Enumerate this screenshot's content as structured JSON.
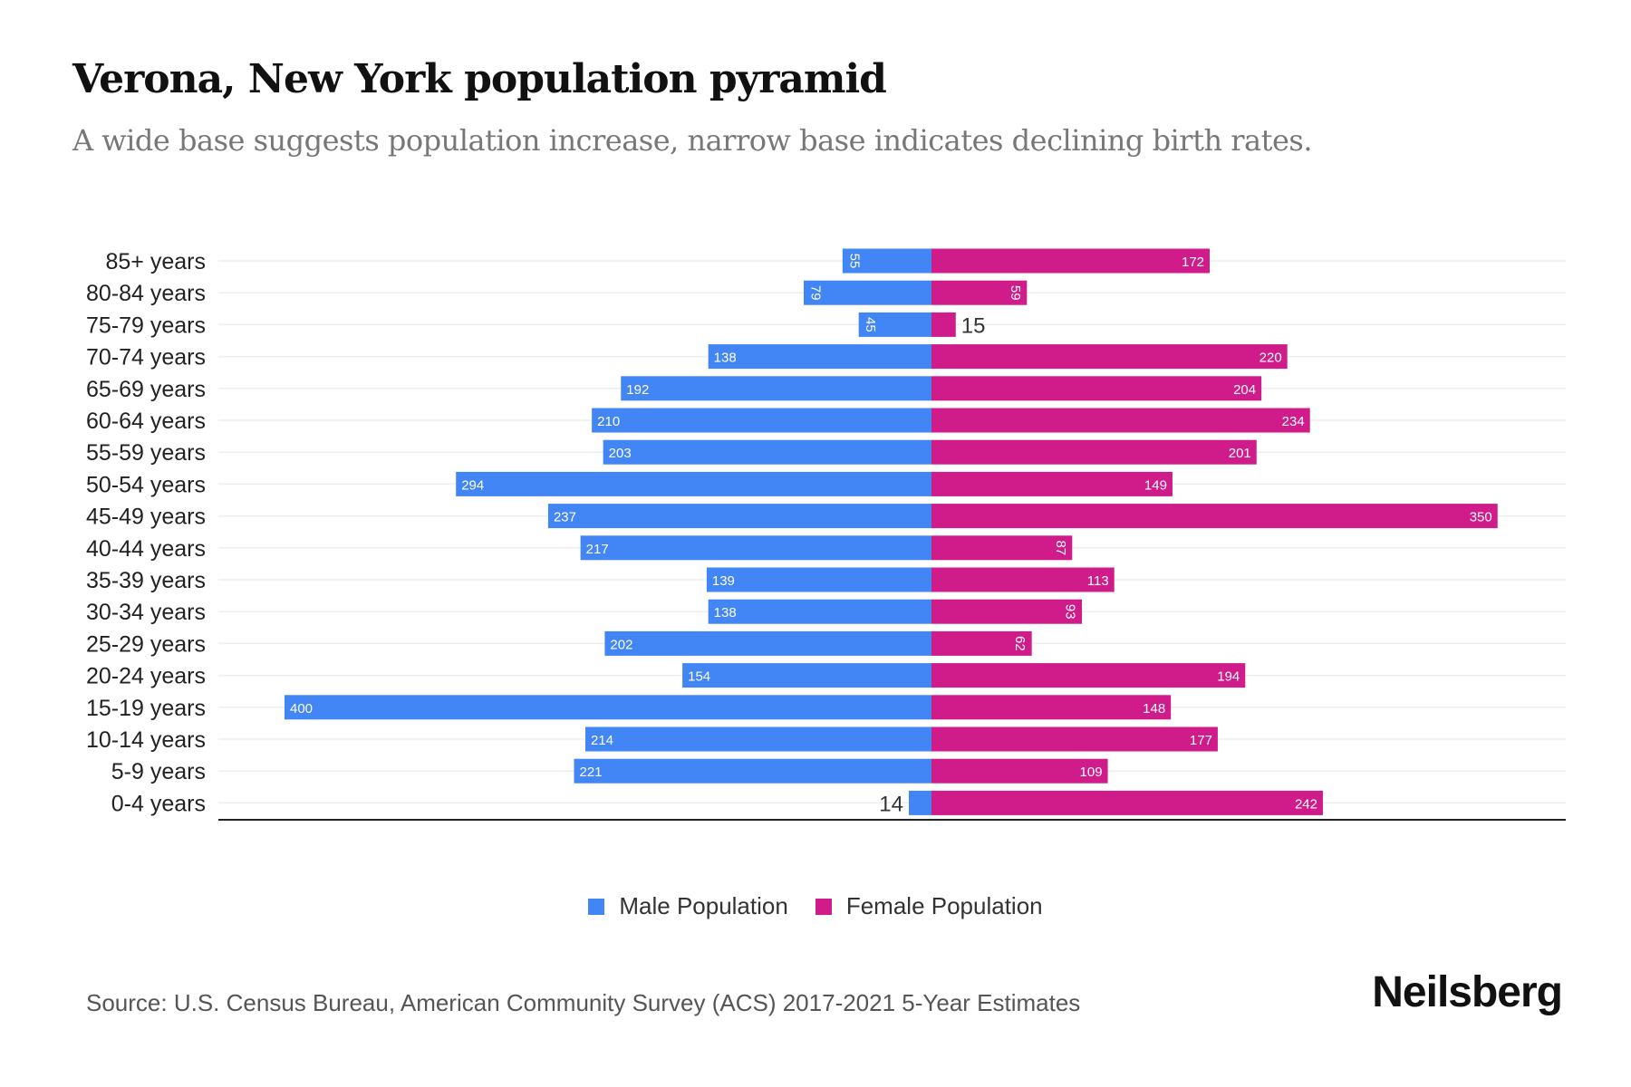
{
  "title": "Verona, New York population pyramid",
  "subtitle": "A wide base suggests population increase, narrow base indicates declining birth rates.",
  "source": "Source: U.S. Census Bureau, American Community Survey (ACS) 2017-2021 5-Year Estimates",
  "logo": "Neilsberg",
  "colors": {
    "male": "#4285f4",
    "female": "#d01c8b"
  },
  "chart_data": {
    "type": "bar",
    "orientation": "horizontal-pyramid",
    "categories": [
      "85+ years",
      "80-84 years",
      "75-79 years",
      "70-74 years",
      "65-69 years",
      "60-64 years",
      "55-59 years",
      "50-54 years",
      "45-49 years",
      "40-44 years",
      "35-39 years",
      "30-34 years",
      "25-29 years",
      "20-24 years",
      "15-19 years",
      "10-14 years",
      "5-9 years",
      "0-4 years"
    ],
    "series": [
      {
        "name": "Male Population",
        "values": [
          55,
          79,
          45,
          138,
          192,
          210,
          203,
          294,
          237,
          217,
          139,
          138,
          202,
          154,
          400,
          214,
          221,
          14
        ]
      },
      {
        "name": "Female Population",
        "values": [
          172,
          59,
          15,
          220,
          204,
          234,
          201,
          149,
          350,
          87,
          113,
          93,
          62,
          194,
          148,
          177,
          109,
          242
        ]
      }
    ],
    "legend": "bottom-center",
    "grid": true
  }
}
